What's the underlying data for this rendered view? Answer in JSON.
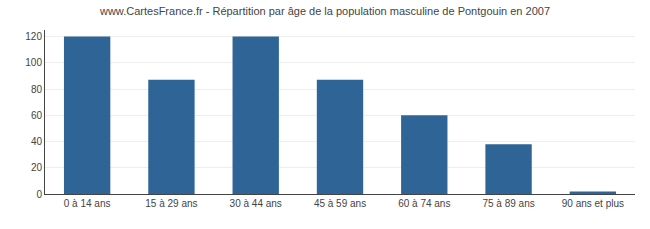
{
  "chart_data": {
    "type": "bar",
    "title": "www.CartesFrance.fr - Répartition par âge de la population masculine de Pontgouin en 2007",
    "categories": [
      "0 à 14 ans",
      "15 à 29 ans",
      "30 à 44 ans",
      "45 à 59 ans",
      "60 à 74 ans",
      "75 à 89 ans",
      "90 ans et plus"
    ],
    "values": [
      120,
      87,
      120,
      87,
      60,
      38,
      2
    ],
    "color": "#2e6496",
    "ylim": [
      0,
      125
    ],
    "yticks": [
      0,
      20,
      40,
      60,
      80,
      100,
      120
    ],
    "grid": true
  }
}
